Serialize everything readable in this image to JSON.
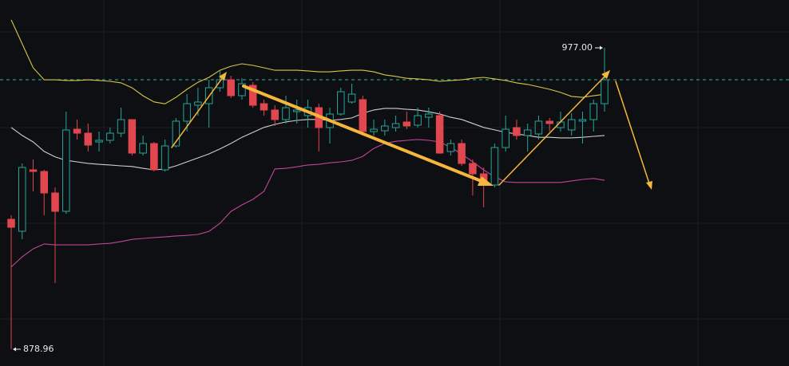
{
  "chart_data": {
    "type": "candlestick",
    "ylim": [
      873.5,
      992.56
    ],
    "up_color": "#26a69a",
    "down_color": "#e0474f",
    "last_price_color": "#2bb5a0",
    "open": [
      921.23,
      917.34,
      937.31,
      936.79,
      929.79,
      923.82,
      950.54,
      949.24,
      946.39,
      946.91,
      949.24,
      953.65,
      942.76,
      945.87,
      937.31,
      945.09,
      953.14,
      958.32,
      958.84,
      964.03,
      966.62,
      961.44,
      964.81,
      958.84,
      956.77,
      953.65,
      956.25,
      954.95,
      957.54,
      951.06,
      955.47,
      959.36,
      960.14,
      949.76,
      950.02,
      951.06,
      952.88,
      951.84,
      954.43,
      954.95,
      943.28,
      945.87,
      939.39,
      936.01,
      932.38,
      944.57,
      951.06,
      948.47,
      948.98,
      953.14,
      951.06,
      950.28,
      953.14,
      953.65,
      958.84
    ],
    "high": [
      922.53,
      939.39,
      940.68,
      937.31,
      931.6,
      956.25,
      953.65,
      952.36,
      949.76,
      951.06,
      957.54,
      953.65,
      948.47,
      946.39,
      947.17,
      954.17,
      961.95,
      964.03,
      966.62,
      969.74,
      967.92,
      967.14,
      965.85,
      960.14,
      958.32,
      961.44,
      960.14,
      960.14,
      958.84,
      957.54,
      964.03,
      965.33,
      961.44,
      953.65,
      953.65,
      954.95,
      956.25,
      957.54,
      957.54,
      956.25,
      947.17,
      947.17,
      940.68,
      938.09,
      945.87,
      954.95,
      953.65,
      952.36,
      954.95,
      954.17,
      956.25,
      955.73,
      956.25,
      960.14,
      977.0
    ],
    "low": [
      878.96,
      914.74,
      930.31,
      922.53,
      900.48,
      923.04,
      947.17,
      943.28,
      943.28,
      945.87,
      947.95,
      941.98,
      941.98,
      936.79,
      936.79,
      944.57,
      949.76,
      954.95,
      951.06,
      962.73,
      960.66,
      960.14,
      957.54,
      954.95,
      951.58,
      952.36,
      952.36,
      951.06,
      943.28,
      945.87,
      954.95,
      958.84,
      948.47,
      948.47,
      948.47,
      949.76,
      950.54,
      951.06,
      951.06,
      942.5,
      941.98,
      938.61,
      929.01,
      925.12,
      931.6,
      943.28,
      947.17,
      943.28,
      947.17,
      949.76,
      949.76,
      948.47,
      945.87,
      949.76,
      956.25
    ],
    "close": [
      918.63,
      938.09,
      936.79,
      929.79,
      923.82,
      950.28,
      949.24,
      945.35,
      946.91,
      949.24,
      953.65,
      942.76,
      945.87,
      937.31,
      945.09,
      953.14,
      958.84,
      959.36,
      964.03,
      966.62,
      961.44,
      965.33,
      958.32,
      956.77,
      953.65,
      957.54,
      956.77,
      957.54,
      951.06,
      955.47,
      962.73,
      961.95,
      949.76,
      950.54,
      951.58,
      952.36,
      951.58,
      954.95,
      955.47,
      942.76,
      945.87,
      939.39,
      936.01,
      932.38,
      944.57,
      950.54,
      948.47,
      950.28,
      953.14,
      952.36,
      952.88,
      953.65,
      953.65,
      958.84,
      966.62
    ],
    "bands": [
      {
        "color": "#d6c845",
        "values": [
          986.1,
          978.3,
          970.5,
          966.6,
          966.6,
          966.4,
          966.4,
          966.6,
          966.4,
          966.1,
          965.6,
          964.0,
          961.4,
          959.4,
          958.8,
          960.9,
          963.5,
          965.8,
          967.4,
          969.7,
          971.0,
          971.8,
          971.3,
          970.5,
          969.7,
          969.7,
          969.7,
          969.5,
          969.2,
          969.2,
          969.5,
          969.7,
          969.7,
          969.2,
          968.2,
          967.7,
          967.1,
          966.9,
          966.6,
          966.1,
          966.4,
          966.6,
          967.1,
          967.4,
          966.9,
          966.4,
          965.6,
          965.1,
          964.3,
          963.5,
          962.5,
          961.2,
          960.9,
          961.4,
          961.9
        ]
      },
      {
        "color": "#cfcfcf",
        "values": [
          951.1,
          948.5,
          946.4,
          943.3,
          941.5,
          940.4,
          939.9,
          939.4,
          939.1,
          938.9,
          938.6,
          938.4,
          937.8,
          937.3,
          937.6,
          938.6,
          939.9,
          941.2,
          942.5,
          944.1,
          945.9,
          947.9,
          949.5,
          951.1,
          952.1,
          952.9,
          953.4,
          953.7,
          953.7,
          953.4,
          953.7,
          954.2,
          955.7,
          956.8,
          957.3,
          957.3,
          957.0,
          956.8,
          956.2,
          955.5,
          954.4,
          953.7,
          952.4,
          951.1,
          950.3,
          949.5,
          949.0,
          948.5,
          947.9,
          947.9,
          947.7,
          947.7,
          947.9,
          948.2,
          948.5
        ]
      },
      {
        "color": "#c24499",
        "values": [
          905.7,
          909.0,
          911.6,
          913.2,
          912.9,
          912.9,
          912.9,
          912.9,
          913.2,
          913.4,
          914.0,
          914.7,
          915.0,
          915.3,
          915.5,
          915.8,
          916.0,
          916.3,
          917.3,
          919.9,
          923.8,
          925.9,
          927.7,
          930.3,
          937.6,
          937.8,
          938.3,
          938.9,
          939.1,
          939.6,
          939.9,
          940.4,
          941.7,
          944.3,
          945.9,
          946.6,
          946.9,
          947.2,
          946.9,
          946.4,
          944.6,
          942.5,
          939.9,
          937.3,
          935.0,
          933.4,
          933.2,
          933.2,
          933.2,
          933.2,
          933.2,
          933.7,
          934.2,
          934.5,
          933.9
        ]
      }
    ],
    "annotations": [
      {
        "label": "977.00",
        "value": 977.0
      },
      {
        "label": "878.96",
        "value": 878.96
      }
    ]
  }
}
